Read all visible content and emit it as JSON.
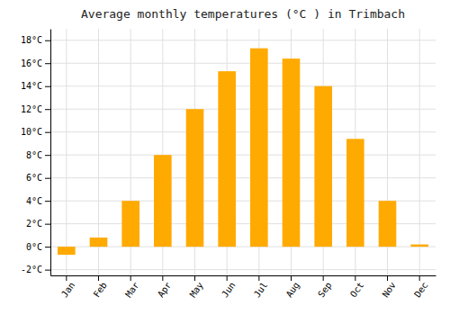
{
  "chart_data": {
    "type": "bar",
    "title": "Average monthly temperatures (°C ) in Trimbach",
    "categories": [
      "Jan",
      "Feb",
      "Mar",
      "Apr",
      "May",
      "Jun",
      "Jul",
      "Aug",
      "Sep",
      "Oct",
      "Nov",
      "Dec"
    ],
    "values": [
      -0.7,
      0.8,
      4.0,
      8.0,
      12.0,
      15.3,
      17.3,
      16.4,
      14.0,
      9.4,
      4.0,
      0.2
    ],
    "color": "#FFAA00",
    "ylim": [
      -2.5,
      19
    ],
    "yticks": [
      {
        "value": -2,
        "label": "-2°C"
      },
      {
        "value": 0,
        "label": "0°C"
      },
      {
        "value": 2,
        "label": "2°C"
      },
      {
        "value": 4,
        "label": "4°C"
      },
      {
        "value": 6,
        "label": "6°C"
      },
      {
        "value": 8,
        "label": "8°C"
      },
      {
        "value": 10,
        "label": "10°C"
      },
      {
        "value": 12,
        "label": "12°C"
      },
      {
        "value": 14,
        "label": "14°C"
      },
      {
        "value": 16,
        "label": "16°C"
      },
      {
        "value": 18,
        "label": "18°C"
      }
    ],
    "grid": true
  }
}
